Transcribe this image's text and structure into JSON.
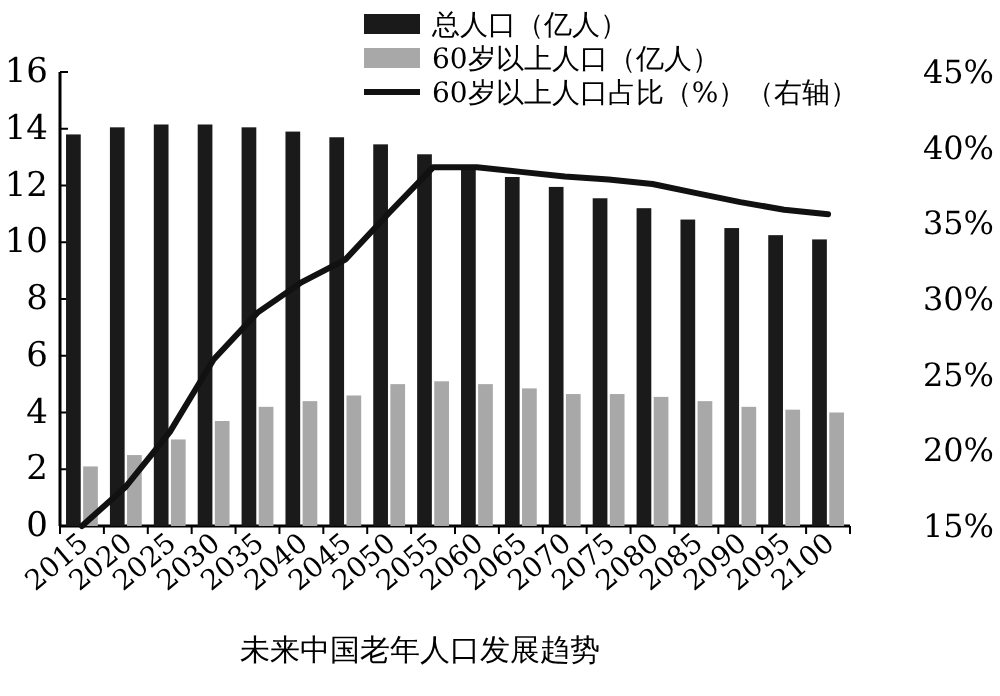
{
  "chart_data": {
    "type": "bar",
    "title": "未来中国老年人口发展趋势",
    "categories": [
      "2015",
      "2020",
      "2025",
      "2030",
      "2035",
      "2040",
      "2045",
      "2050",
      "2055",
      "2060",
      "2065",
      "2070",
      "2075",
      "2080",
      "2085",
      "2090",
      "2095",
      "2100"
    ],
    "series": [
      {
        "name": "总人口（亿人）",
        "color": "#1a1a1a",
        "values": [
          13.8,
          14.05,
          14.15,
          14.15,
          14.05,
          13.9,
          13.7,
          13.45,
          13.1,
          12.65,
          12.3,
          11.95,
          11.55,
          11.2,
          10.8,
          10.5,
          10.25,
          10.1
        ]
      },
      {
        "name": "60岁以上人口（亿人）",
        "color": "#a8a8a8",
        "values": [
          2.1,
          2.5,
          3.05,
          3.7,
          4.2,
          4.4,
          4.6,
          5.0,
          5.1,
          5.0,
          4.85,
          4.65,
          4.65,
          4.55,
          4.4,
          4.2,
          4.1,
          4.0
        ]
      },
      {
        "name": "60岁以上人口占比（%）（右轴）",
        "type": "line",
        "axis": "y2",
        "color": "#111111",
        "values": [
          15.0,
          17.6,
          21.2,
          26.0,
          29.1,
          31.1,
          32.6,
          35.7,
          38.7,
          38.7,
          38.4,
          38.1,
          37.9,
          37.6,
          37.0,
          36.4,
          35.9,
          35.6
        ]
      }
    ],
    "ylim": [
      0,
      16
    ],
    "yticks": [
      0,
      2,
      4,
      6,
      8,
      10,
      12,
      14,
      16
    ],
    "y2lim": [
      15,
      45
    ],
    "y2ticks": [
      {
        "value": 15,
        "label": "15%"
      },
      {
        "value": 20,
        "label": "20%"
      },
      {
        "value": 25,
        "label": "25%"
      },
      {
        "value": 30,
        "label": "30%"
      },
      {
        "value": 35,
        "label": "35%"
      },
      {
        "value": 40,
        "label": "40%"
      },
      {
        "value": 45,
        "label": "45%"
      }
    ],
    "legend": "top"
  }
}
